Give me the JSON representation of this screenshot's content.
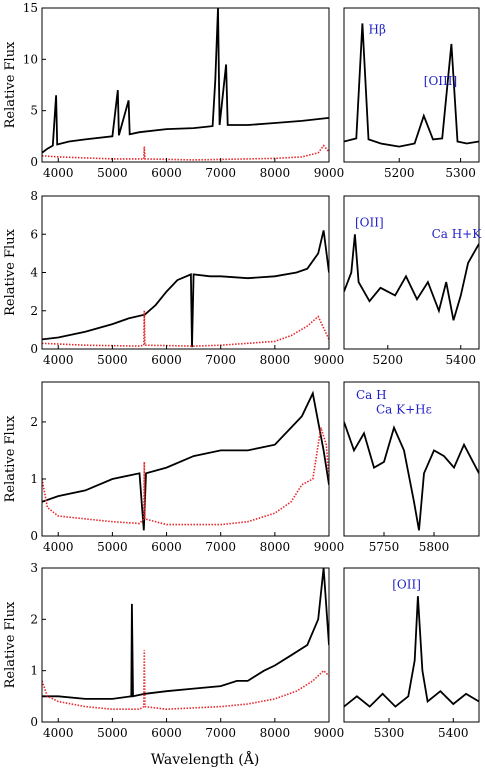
{
  "figure": {
    "xlabel": "Wavelength (Å)",
    "colors": {
      "spectrum": "#000000",
      "noise": "#e8262a",
      "annotation": "#1f1fc8"
    }
  },
  "chart_data": [
    {
      "type": "line",
      "panel": "row1-main",
      "ylabel": "Relative Flux",
      "xlim": [
        3700,
        9000
      ],
      "ylim": [
        0,
        15
      ],
      "xticks": [
        "4000",
        "5000",
        "6000",
        "7000",
        "8000",
        "9000"
      ],
      "xtickvals": [
        4000,
        5000,
        6000,
        7000,
        8000,
        9000
      ],
      "yticks": [
        "0",
        "5",
        "10",
        "15"
      ],
      "ytickvals": [
        0,
        5,
        10,
        15
      ],
      "series": [
        {
          "color": "spectrum",
          "points": [
            [
              3700,
              0.9
            ],
            [
              3800,
              1.3
            ],
            [
              3900,
              1.6
            ],
            [
              3960,
              6.5
            ],
            [
              3980,
              1.7
            ],
            [
              4200,
              2.0
            ],
            [
              4500,
              2.2
            ],
            [
              5000,
              2.5
            ],
            [
              5100,
              7.0
            ],
            [
              5120,
              2.6
            ],
            [
              5300,
              6.0
            ],
            [
              5320,
              2.7
            ],
            [
              5500,
              2.9
            ],
            [
              6000,
              3.2
            ],
            [
              6500,
              3.3
            ],
            [
              6850,
              3.5
            ],
            [
              6900,
              8.0
            ],
            [
              6950,
              15.0
            ],
            [
              6980,
              3.6
            ],
            [
              7100,
              9.5
            ],
            [
              7130,
              3.6
            ],
            [
              7500,
              3.6
            ],
            [
              8000,
              3.8
            ],
            [
              8500,
              4.0
            ],
            [
              9000,
              4.3
            ]
          ]
        },
        {
          "color": "noise",
          "points": [
            [
              3700,
              0.6
            ],
            [
              4000,
              0.5
            ],
            [
              5000,
              0.3
            ],
            [
              5580,
              0.3
            ],
            [
              5590,
              1.5
            ],
            [
              5600,
              0.3
            ],
            [
              6500,
              0.2
            ],
            [
              7000,
              0.25
            ],
            [
              7500,
              0.3
            ],
            [
              8000,
              0.35
            ],
            [
              8500,
              0.5
            ],
            [
              8800,
              0.9
            ],
            [
              8900,
              1.6
            ],
            [
              9000,
              1.0
            ]
          ]
        }
      ]
    },
    {
      "type": "line",
      "panel": "row1-zoom",
      "xlim": [
        5110,
        5330
      ],
      "ylim": [
        0,
        15
      ],
      "xticks": [
        "5200",
        "5300"
      ],
      "xtickvals": [
        5200,
        5300
      ],
      "annotations": [
        {
          "text": "Hβ",
          "x": 5150,
          "y": 12.5
        },
        {
          "text": "[OIII]",
          "x": 5240,
          "y": 7.5
        }
      ],
      "series": [
        {
          "color": "spectrum",
          "points": [
            [
              5110,
              2.0
            ],
            [
              5130,
              2.3
            ],
            [
              5140,
              13.5
            ],
            [
              5150,
              2.2
            ],
            [
              5170,
              1.8
            ],
            [
              5200,
              1.5
            ],
            [
              5225,
              1.8
            ],
            [
              5240,
              4.5
            ],
            [
              5255,
              2.2
            ],
            [
              5270,
              2.3
            ],
            [
              5285,
              11.5
            ],
            [
              5295,
              2.0
            ],
            [
              5310,
              1.8
            ],
            [
              5330,
              2.0
            ]
          ]
        }
      ]
    },
    {
      "type": "line",
      "panel": "row2-main",
      "ylabel": "Relative Flux",
      "xlim": [
        3700,
        9000
      ],
      "ylim": [
        0,
        8
      ],
      "xticks": [
        "4000",
        "5000",
        "6000",
        "7000",
        "8000",
        "9000"
      ],
      "xtickvals": [
        4000,
        5000,
        6000,
        7000,
        8000,
        9000
      ],
      "yticks": [
        "0",
        "2",
        "4",
        "6",
        "8"
      ],
      "ytickvals": [
        0,
        2,
        4,
        6,
        8
      ],
      "series": [
        {
          "color": "spectrum",
          "points": [
            [
              3700,
              0.5
            ],
            [
              4000,
              0.6
            ],
            [
              4500,
              0.9
            ],
            [
              5000,
              1.3
            ],
            [
              5300,
              1.6
            ],
            [
              5600,
              1.8
            ],
            [
              5800,
              2.3
            ],
            [
              6000,
              3.0
            ],
            [
              6200,
              3.6
            ],
            [
              6450,
              3.9
            ],
            [
              6470,
              0.1
            ],
            [
              6500,
              3.9
            ],
            [
              6800,
              3.8
            ],
            [
              7000,
              3.8
            ],
            [
              7500,
              3.7
            ],
            [
              8000,
              3.8
            ],
            [
              8400,
              4.0
            ],
            [
              8600,
              4.2
            ],
            [
              8800,
              5.0
            ],
            [
              8900,
              6.2
            ],
            [
              9000,
              4.0
            ]
          ]
        },
        {
          "color": "noise",
          "points": [
            [
              3700,
              0.3
            ],
            [
              4500,
              0.2
            ],
            [
              5500,
              0.15
            ],
            [
              5580,
              0.2
            ],
            [
              5590,
              2.0
            ],
            [
              5600,
              0.2
            ],
            [
              6500,
              0.15
            ],
            [
              7000,
              0.2
            ],
            [
              7500,
              0.3
            ],
            [
              8000,
              0.4
            ],
            [
              8300,
              0.7
            ],
            [
              8600,
              1.2
            ],
            [
              8800,
              1.7
            ],
            [
              8950,
              0.8
            ],
            [
              9000,
              0.5
            ]
          ]
        }
      ]
    },
    {
      "type": "line",
      "panel": "row2-zoom",
      "xlim": [
        5080,
        5450
      ],
      "ylim": [
        0,
        8
      ],
      "xticks": [
        "5200",
        "5400"
      ],
      "xtickvals": [
        5200,
        5400
      ],
      "annotations": [
        {
          "text": "[OII]",
          "x": 5110,
          "y": 6.4
        },
        {
          "text": "Ca H+K",
          "x": 5320,
          "y": 5.8
        }
      ],
      "series": [
        {
          "color": "spectrum",
          "points": [
            [
              5080,
              3.0
            ],
            [
              5100,
              4.0
            ],
            [
              5110,
              6.0
            ],
            [
              5120,
              3.5
            ],
            [
              5150,
              2.5
            ],
            [
              5180,
              3.2
            ],
            [
              5220,
              2.8
            ],
            [
              5250,
              3.8
            ],
            [
              5280,
              2.6
            ],
            [
              5310,
              3.5
            ],
            [
              5340,
              2.0
            ],
            [
              5360,
              3.5
            ],
            [
              5380,
              1.5
            ],
            [
              5400,
              2.8
            ],
            [
              5420,
              4.5
            ],
            [
              5450,
              5.5
            ]
          ]
        }
      ]
    },
    {
      "type": "line",
      "panel": "row3-main",
      "ylabel": "Relative Flux",
      "xlim": [
        3700,
        9000
      ],
      "ylim": [
        0,
        2.7
      ],
      "xticks": [
        "4000",
        "5000",
        "6000",
        "7000",
        "8000",
        "9000"
      ],
      "xtickvals": [
        4000,
        5000,
        6000,
        7000,
        8000,
        9000
      ],
      "yticks": [
        "0",
        "1",
        "2"
      ],
      "ytickvals": [
        0,
        1,
        2
      ],
      "series": [
        {
          "color": "spectrum",
          "points": [
            [
              3700,
              0.6
            ],
            [
              4000,
              0.7
            ],
            [
              4500,
              0.8
            ],
            [
              5000,
              1.0
            ],
            [
              5500,
              1.1
            ],
            [
              5580,
              0.1
            ],
            [
              5620,
              1.1
            ],
            [
              6000,
              1.2
            ],
            [
              6500,
              1.4
            ],
            [
              7000,
              1.5
            ],
            [
              7500,
              1.5
            ],
            [
              8000,
              1.6
            ],
            [
              8300,
              1.9
            ],
            [
              8500,
              2.1
            ],
            [
              8700,
              2.5
            ],
            [
              8900,
              1.5
            ],
            [
              9000,
              0.9
            ]
          ]
        },
        {
          "color": "noise",
          "points": [
            [
              3700,
              1.0
            ],
            [
              3800,
              0.5
            ],
            [
              4000,
              0.35
            ],
            [
              4500,
              0.3
            ],
            [
              5000,
              0.25
            ],
            [
              5500,
              0.22
            ],
            [
              5580,
              0.3
            ],
            [
              5590,
              1.3
            ],
            [
              5600,
              0.3
            ],
            [
              6000,
              0.2
            ],
            [
              7000,
              0.2
            ],
            [
              7500,
              0.25
            ],
            [
              8000,
              0.4
            ],
            [
              8300,
              0.6
            ],
            [
              8500,
              0.9
            ],
            [
              8700,
              1.0
            ],
            [
              8850,
              1.9
            ],
            [
              8950,
              1.6
            ],
            [
              9000,
              1.0
            ]
          ]
        }
      ]
    },
    {
      "type": "line",
      "panel": "row3-zoom",
      "xlim": [
        5710,
        5845
      ],
      "ylim": [
        0,
        2.7
      ],
      "xticks": [
        "5750",
        "5800"
      ],
      "xtickvals": [
        5750,
        5800
      ],
      "annotations": [
        {
          "text": "Ca H",
          "x": 5722,
          "y": 2.4
        },
        {
          "text": "Ca K+Hε",
          "x": 5742,
          "y": 2.15
        }
      ],
      "series": [
        {
          "color": "spectrum",
          "points": [
            [
              5710,
              2.0
            ],
            [
              5720,
              1.5
            ],
            [
              5730,
              1.8
            ],
            [
              5740,
              1.2
            ],
            [
              5750,
              1.3
            ],
            [
              5760,
              1.9
            ],
            [
              5770,
              1.5
            ],
            [
              5780,
              0.6
            ],
            [
              5785,
              0.1
            ],
            [
              5790,
              1.1
            ],
            [
              5800,
              1.5
            ],
            [
              5810,
              1.4
            ],
            [
              5820,
              1.2
            ],
            [
              5830,
              1.6
            ],
            [
              5845,
              1.1
            ]
          ]
        }
      ]
    },
    {
      "type": "line",
      "panel": "row4-main",
      "ylabel": "Relative Flux",
      "xlim": [
        3700,
        9000
      ],
      "ylim": [
        0,
        3
      ],
      "xticks": [
        "4000",
        "5000",
        "6000",
        "7000",
        "8000",
        "9000"
      ],
      "xtickvals": [
        4000,
        5000,
        6000,
        7000,
        8000,
        9000
      ],
      "yticks": [
        "0",
        "1",
        "2",
        "3"
      ],
      "ytickvals": [
        0,
        1,
        2,
        3
      ],
      "series": [
        {
          "color": "spectrum",
          "points": [
            [
              3700,
              0.5
            ],
            [
              4000,
              0.5
            ],
            [
              4500,
              0.45
            ],
            [
              5000,
              0.45
            ],
            [
              5350,
              0.5
            ],
            [
              5360,
              2.3
            ],
            [
              5380,
              0.5
            ],
            [
              5600,
              0.55
            ],
            [
              6000,
              0.6
            ],
            [
              6500,
              0.65
            ],
            [
              7000,
              0.7
            ],
            [
              7300,
              0.8
            ],
            [
              7500,
              0.8
            ],
            [
              7800,
              1.0
            ],
            [
              8000,
              1.1
            ],
            [
              8300,
              1.3
            ],
            [
              8600,
              1.5
            ],
            [
              8800,
              2.0
            ],
            [
              8900,
              3.0
            ],
            [
              9000,
              1.5
            ]
          ]
        },
        {
          "color": "noise",
          "points": [
            [
              3700,
              0.8
            ],
            [
              3800,
              0.5
            ],
            [
              4000,
              0.4
            ],
            [
              4500,
              0.3
            ],
            [
              5000,
              0.25
            ],
            [
              5500,
              0.25
            ],
            [
              5580,
              0.3
            ],
            [
              5590,
              1.4
            ],
            [
              5600,
              0.3
            ],
            [
              6000,
              0.25
            ],
            [
              7000,
              0.3
            ],
            [
              7500,
              0.35
            ],
            [
              8000,
              0.45
            ],
            [
              8400,
              0.6
            ],
            [
              8700,
              0.8
            ],
            [
              8900,
              1.0
            ],
            [
              9000,
              0.9
            ]
          ]
        }
      ]
    },
    {
      "type": "line",
      "panel": "row4-zoom",
      "xlim": [
        5230,
        5440
      ],
      "ylim": [
        0,
        3
      ],
      "xticks": [
        "5300",
        "5400"
      ],
      "xtickvals": [
        5300,
        5400
      ],
      "annotations": [
        {
          "text": "[OII]",
          "x": 5305,
          "y": 2.6
        }
      ],
      "series": [
        {
          "color": "spectrum",
          "points": [
            [
              5230,
              0.3
            ],
            [
              5250,
              0.5
            ],
            [
              5270,
              0.3
            ],
            [
              5290,
              0.55
            ],
            [
              5310,
              0.3
            ],
            [
              5330,
              0.5
            ],
            [
              5340,
              1.2
            ],
            [
              5345,
              2.45
            ],
            [
              5352,
              1.0
            ],
            [
              5360,
              0.4
            ],
            [
              5380,
              0.6
            ],
            [
              5400,
              0.35
            ],
            [
              5420,
              0.55
            ],
            [
              5440,
              0.4
            ]
          ]
        }
      ]
    }
  ]
}
